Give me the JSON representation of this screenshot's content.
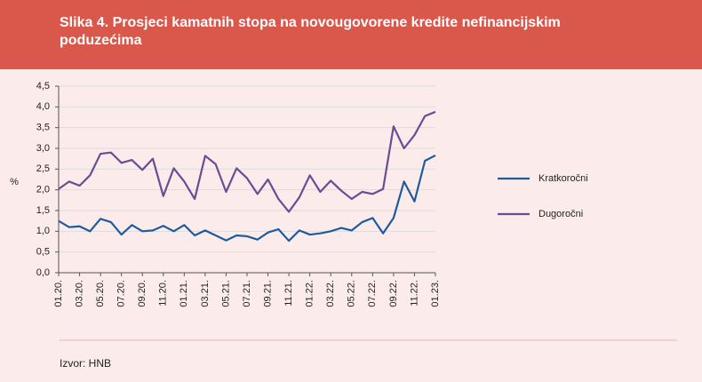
{
  "chart_data": {
    "type": "line",
    "title": "Slika 4. Prosjeci kamatnih stopa na novougovorene kredite nefinancijskim poduzećima",
    "y_label": "%",
    "source": "Izvor: HNB",
    "categories": [
      "01.20.",
      null,
      "03.20.",
      null,
      "05.20.",
      null,
      "07.20.",
      null,
      "09.20.",
      null,
      "11.20.",
      null,
      "01.21.",
      null,
      "03.21.",
      null,
      "05.21.",
      null,
      "07.21.",
      null,
      "09.21.",
      null,
      "11.21.",
      null,
      "01.22.",
      null,
      "03.22.",
      null,
      "05.22.",
      null,
      "07.22.",
      null,
      "09.22.",
      null,
      "11.22.",
      null,
      "01.23."
    ],
    "series": [
      {
        "name": "Kratkoročni",
        "color": "#1f5b9c",
        "values": [
          1.25,
          1.1,
          1.12,
          1.0,
          1.3,
          1.22,
          0.92,
          1.15,
          1.0,
          1.02,
          1.13,
          1.0,
          1.15,
          0.9,
          1.02,
          0.9,
          0.78,
          0.9,
          0.88,
          0.8,
          0.97,
          1.05,
          0.77,
          1.02,
          0.92,
          0.95,
          1.0,
          1.08,
          1.02,
          1.22,
          1.32,
          0.95,
          1.32,
          2.2,
          1.72,
          2.7,
          2.83
        ]
      },
      {
        "name": "Dugoročni",
        "color": "#6a4c93",
        "values": [
          2.02,
          2.2,
          2.1,
          2.35,
          2.87,
          2.9,
          2.65,
          2.72,
          2.48,
          2.75,
          1.85,
          2.52,
          2.2,
          1.78,
          2.82,
          2.62,
          1.95,
          2.52,
          2.28,
          1.9,
          2.25,
          1.78,
          1.47,
          1.82,
          2.35,
          1.95,
          2.22,
          1.98,
          1.78,
          1.95,
          1.9,
          2.02,
          3.53,
          3.0,
          3.32,
          3.78,
          3.88
        ]
      }
    ],
    "ylim": [
      0,
      4.5
    ],
    "yticks": [
      {
        "value": 0,
        "label": "0,0"
      },
      {
        "value": 0.5,
        "label": "0,5"
      },
      {
        "value": 1,
        "label": "1,0"
      },
      {
        "value": 1.5,
        "label": "1,5"
      },
      {
        "value": 2,
        "label": "2,0"
      },
      {
        "value": 2.5,
        "label": "2,5"
      },
      {
        "value": 3,
        "label": "3,0"
      },
      {
        "value": 3.5,
        "label": "3,5"
      },
      {
        "value": 4,
        "label": "4,0"
      },
      {
        "value": 4.5,
        "label": "4,5"
      }
    ],
    "grid": true,
    "legend": "right"
  }
}
